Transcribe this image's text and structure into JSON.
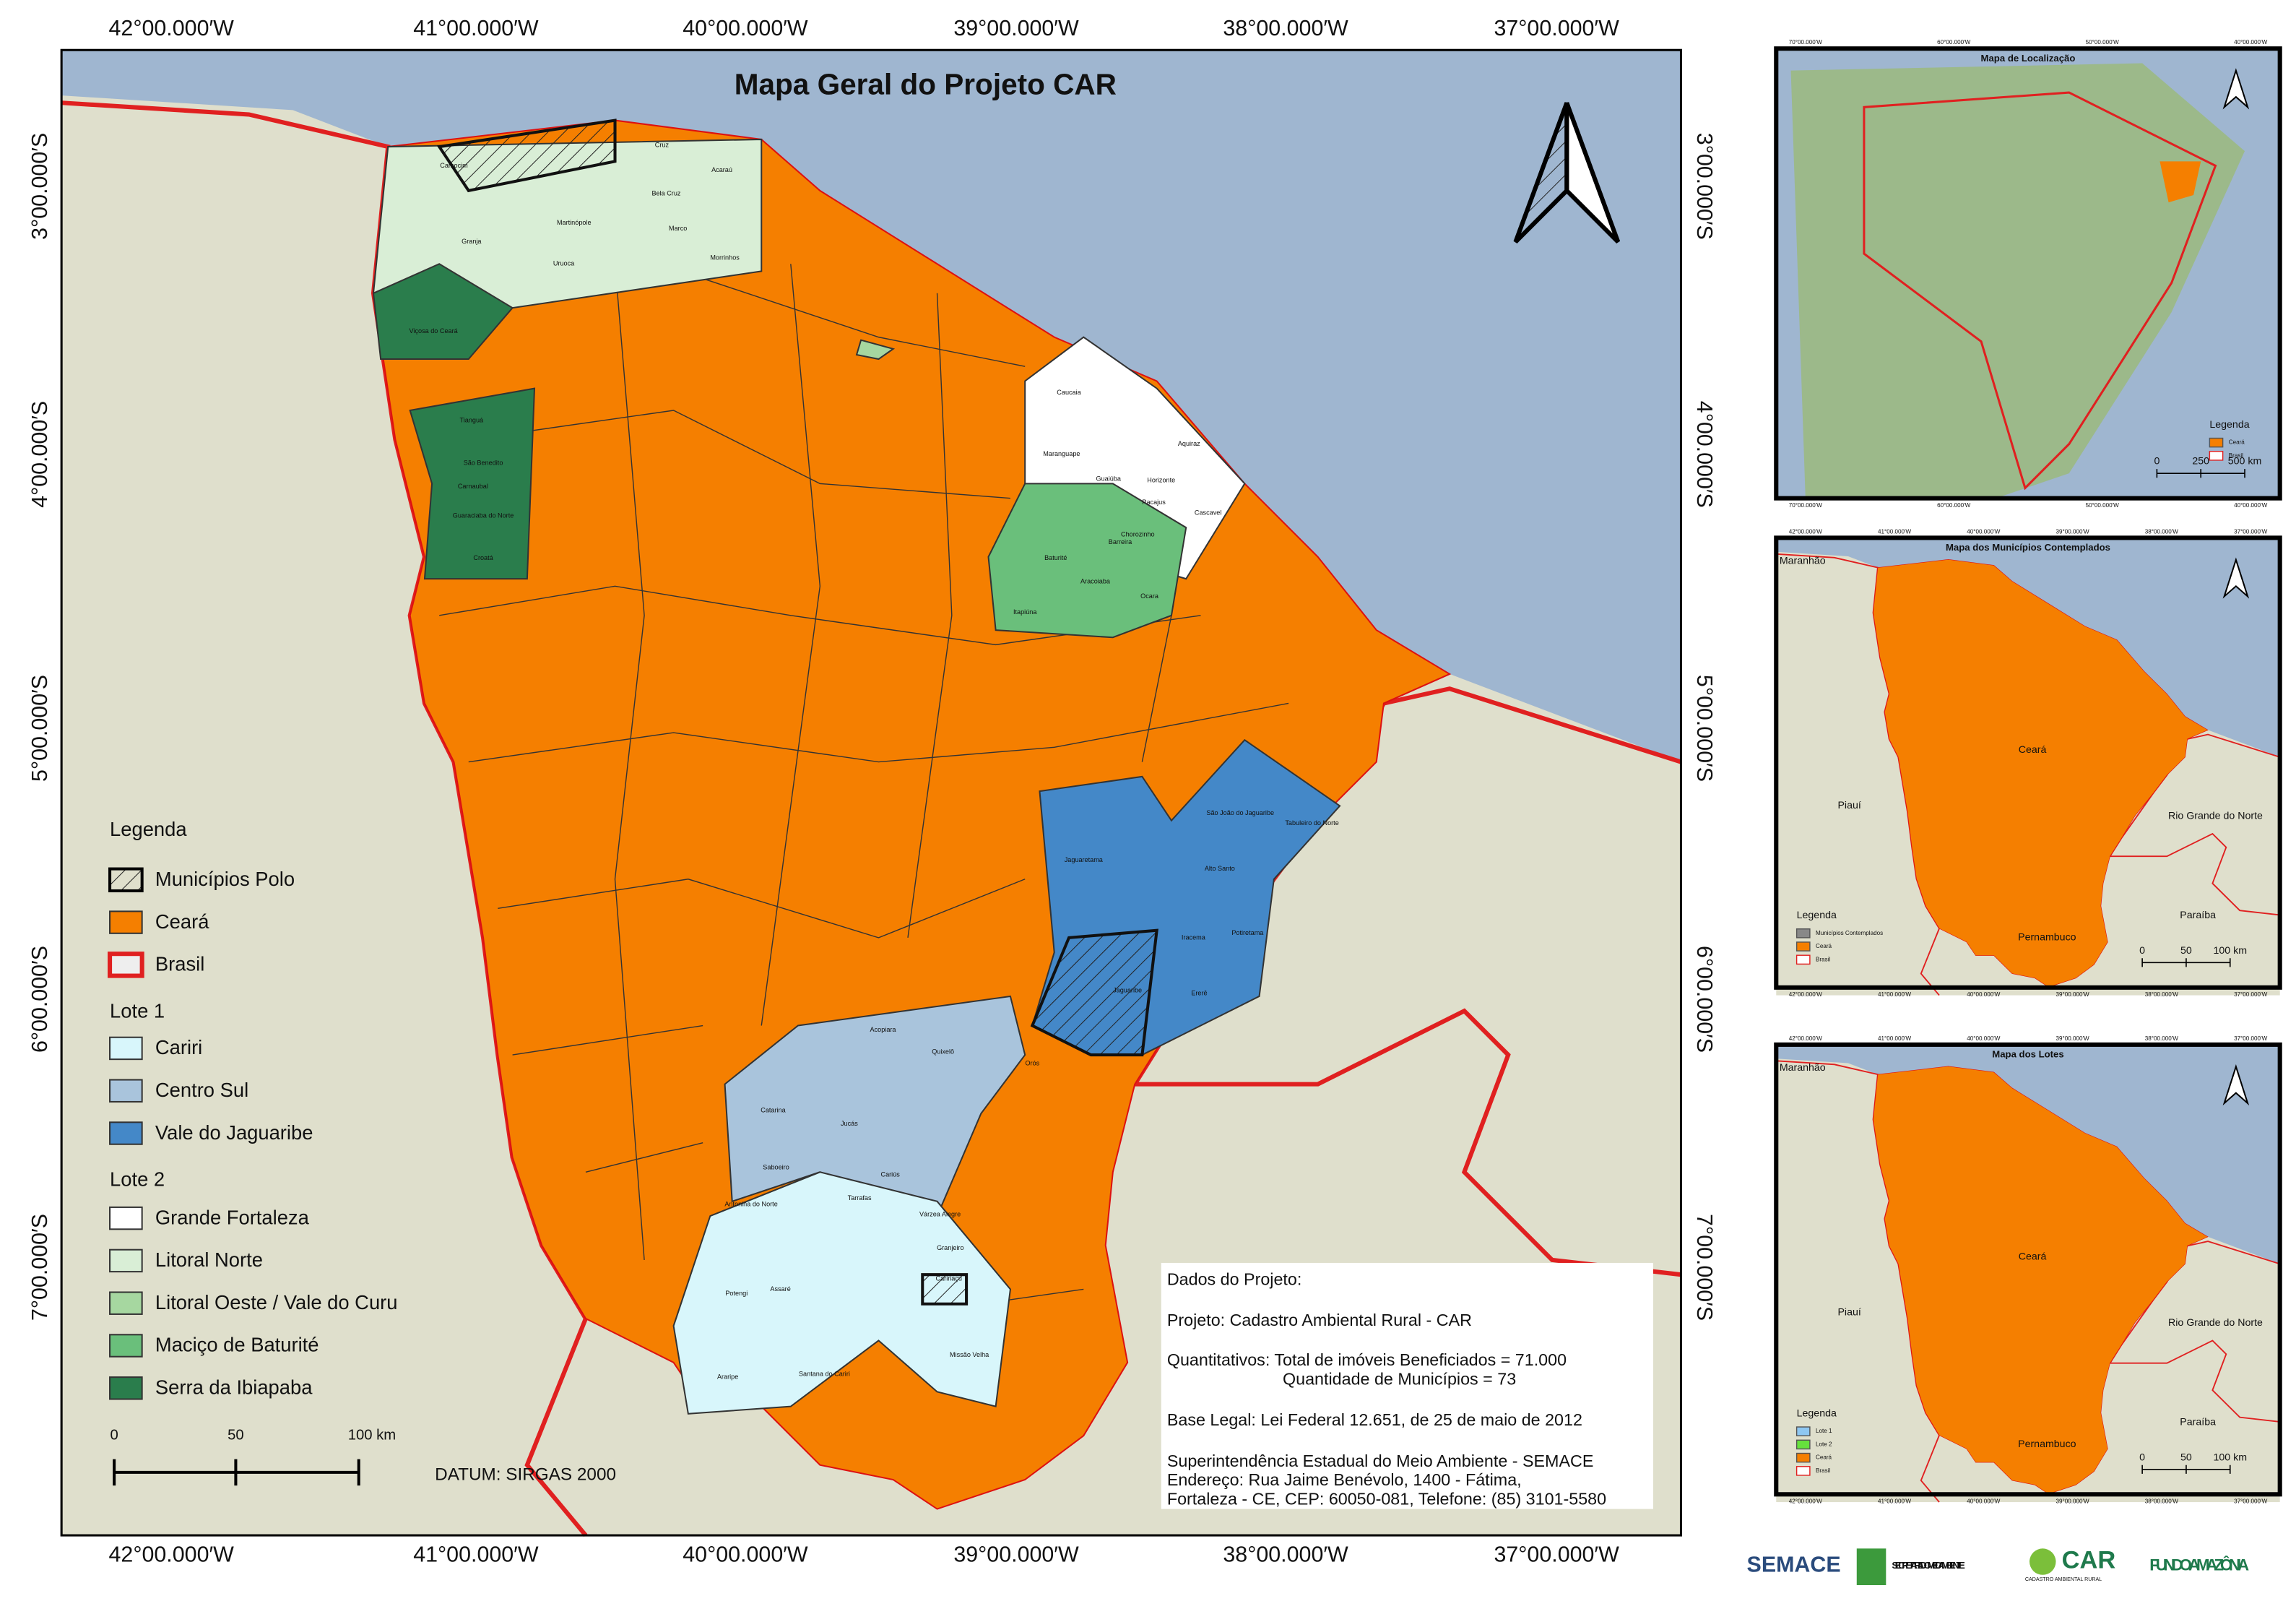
{
  "title": "Mapa Geral do Projeto CAR",
  "coords": {
    "lon": [
      "42°00.000′W",
      "41°00.000′W",
      "40°00.000′W",
      "39°00.000′W",
      "38°00.000′W",
      "37°00.000′W"
    ],
    "lat": [
      "3°00.000′S",
      "4°00.000′S",
      "5°00.000′S",
      "6°00.000′S",
      "7°00.000′S"
    ]
  },
  "legend": {
    "title": "Legenda",
    "items": [
      "Municípios Polo",
      "Ceará",
      "Brasil"
    ],
    "lote1": {
      "title": "Lote 1",
      "items": [
        "Cariri",
        "Centro Sul",
        "Vale do Jaguaribe"
      ]
    },
    "lote2": {
      "title": "Lote 2",
      "items": [
        "Grande Fortaleza",
        "Litoral Norte",
        "Litoral Oeste / Vale do Curu",
        "Maciço de Baturité",
        "Serra da Ibiapaba"
      ]
    }
  },
  "scale": [
    "0",
    "50",
    "100 km"
  ],
  "datum": "DATUM: SIRGAS 2000",
  "project": [
    "Dados do Projeto:",
    "Projeto: Cadastro Ambiental Rural - CAR",
    "Quantitativos: Total de imóveis Beneficiados = 71.000",
    "Quantidade de Municípios = 73",
    "Base Legal: Lei Federal 12.651, de 25 de maio de 2012",
    "Superintendência Estadual do Meio Ambiente - SEMACE",
    "Endereço: Rua Jaime Benévolo, 1400 - Fátima,",
    "Fortaleza - CE, CEP: 60050-081, Telefone: (85) 3101-5580"
  ],
  "municipalities": [
    "Camocim",
    "Granja",
    "Uruoca",
    "Martinópole",
    "Bela Cruz",
    "Acaraú",
    "Cruz",
    "Marco",
    "Morrinhos",
    "Viçosa do Ceará",
    "Tianguá",
    "São Benedito",
    "Carnaubal",
    "Guaraciaba do Norte",
    "Croatá",
    "Caucaia",
    "Maranguape",
    "Aquiraz",
    "Guaiúba",
    "Horizonte",
    "Cascavel",
    "Pacajus",
    "Chorozinho",
    "Barreira",
    "Aracoiaba",
    "Ocara",
    "Baturité",
    "Itapiúna",
    "Jaguaretama",
    "São João do Jaguaribe",
    "Tabuleiro do Norte",
    "Alto Santo",
    "Iracema",
    "Potiretama",
    "Jaguaribe",
    "Ererê",
    "Acopiara",
    "Quixelô",
    "Orós",
    "Catarina",
    "Saboeiro",
    "Jucás",
    "Cariús",
    "Tarrafas",
    "Assaré",
    "Várzea Alegre",
    "Granjeiro",
    "Caririaçu",
    "Potengi",
    "Araripe",
    "Santana do Cariri",
    "Missão Velha",
    "Antonina do Norte"
  ],
  "insets": [
    {
      "title": "Mapa de Localização",
      "lon": [
        "70°00.000′W",
        "60°00.000′W",
        "50°00.000′W",
        "40°00.000′W"
      ],
      "legend": {
        "title": "Legenda",
        "items": [
          "Ceará",
          "Brasil"
        ]
      },
      "scale": [
        "0",
        "250",
        "500 km"
      ]
    },
    {
      "title": "Mapa dos Municípios Contemplados",
      "lon": [
        "42°00.000′W",
        "41°00.000′W",
        "40°00.000′W",
        "39°00.000′W",
        "38°00.000′W",
        "37°00.000′W"
      ],
      "places": [
        "Maranhão",
        "Ceará",
        "Piauí",
        "Rio Grande do Norte",
        "Paraíba",
        "Pernambuco"
      ],
      "legend": {
        "title": "Legenda",
        "items": [
          "Municípios Contemplados",
          "Ceará",
          "Brasil"
        ]
      },
      "scale": [
        "0",
        "50",
        "100 km"
      ]
    },
    {
      "title": "Mapa dos Lotes",
      "lon": [
        "42°00.000′W",
        "41°00.000′W",
        "40°00.000′W",
        "39°00.000′W",
        "38°00.000′W",
        "37°00.000′W"
      ],
      "places": [
        "Maranhão",
        "Ceará",
        "Piauí",
        "Rio Grande do Norte",
        "Paraíba",
        "Pernambuco"
      ],
      "legend": {
        "title": "Legenda",
        "items": [
          "Lote 1",
          "Lote 2",
          "Ceará",
          "Brasil"
        ]
      },
      "scale": [
        "0",
        "50",
        "100 km"
      ]
    }
  ],
  "logos": [
    "SEMACE",
    "SECRETARIA DO MEIO AMBIENTE",
    "CAR",
    "CADASTRO AMBIENTAL RURAL",
    "FUNDO AMAZÔNIA"
  ]
}
